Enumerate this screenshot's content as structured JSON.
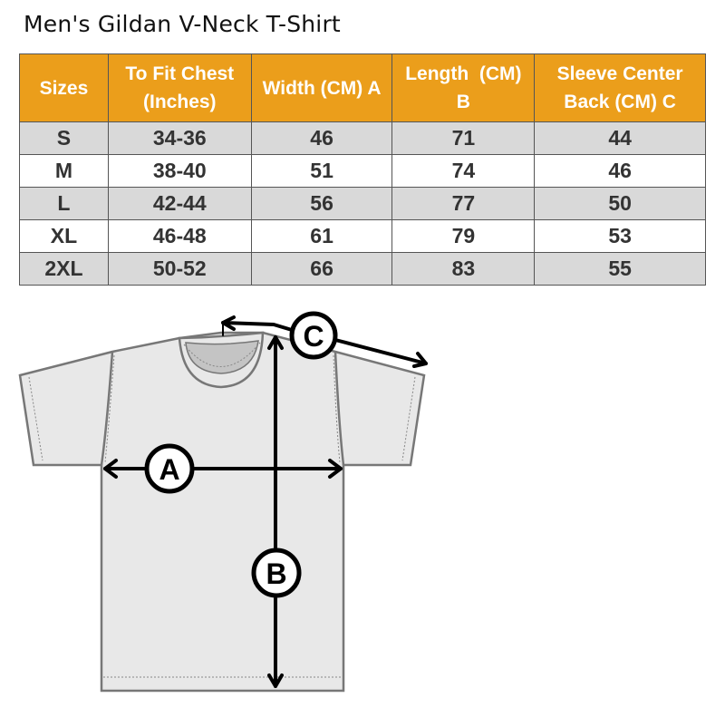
{
  "title": "Men's Gildan V-Neck T-Shirt",
  "table": {
    "headers": [
      "Sizes",
      "To Fit Chest (Inches)",
      "Width (CM) A",
      "Length  (CM) B",
      "Sleeve Center Back (CM) C"
    ],
    "rows": [
      [
        "S",
        "34-36",
        "46",
        "71",
        "44"
      ],
      [
        "M",
        "38-40",
        "51",
        "74",
        "46"
      ],
      [
        "L",
        "42-44",
        "56",
        "77",
        "50"
      ],
      [
        "XL",
        "46-48",
        "61",
        "79",
        "53"
      ],
      [
        "2XL",
        "50-52",
        "66",
        "83",
        "55"
      ]
    ]
  },
  "diagram": {
    "label_a": "A",
    "label_b": "B",
    "label_c": "C"
  },
  "colors": {
    "header": "#eb9e1b",
    "row_alt": "#d9d9d9",
    "shirt": "#e8e8e8"
  }
}
